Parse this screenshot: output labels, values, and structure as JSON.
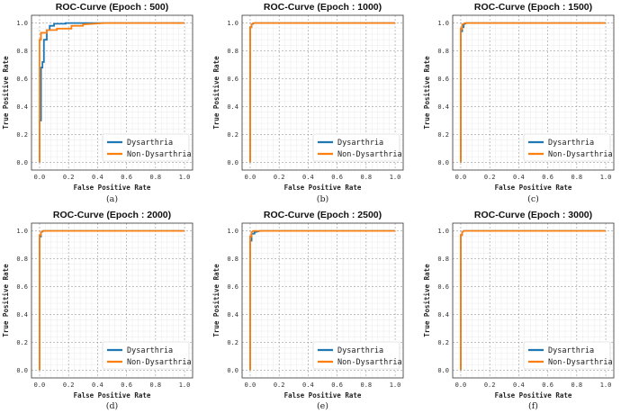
{
  "chart_data": [
    {
      "type": "line",
      "title": "ROC-Curve (Epoch : 500)",
      "caption": "(a)",
      "xlabel": "False Positive Rate",
      "ylabel": "True Positive Rate",
      "xlim": [
        0,
        1
      ],
      "ylim": [
        0,
        1
      ],
      "xticks": [
        "0.0",
        "0.2",
        "0.4",
        "0.6",
        "0.8",
        "1.0"
      ],
      "yticks": [
        "0.0",
        "0.2",
        "0.4",
        "0.6",
        "0.8",
        "1.0"
      ],
      "grid": true,
      "legend_position": "lower-right",
      "series": [
        {
          "name": "Dysarthria",
          "color": "#1f77b4",
          "x": [
            0.0,
            0.0,
            0.01,
            0.01,
            0.02,
            0.02,
            0.03,
            0.03,
            0.05,
            0.05,
            0.07,
            0.07,
            0.1,
            0.1,
            0.18,
            0.18,
            0.7,
            1.0
          ],
          "y": [
            0.0,
            0.3,
            0.3,
            0.68,
            0.68,
            0.72,
            0.72,
            0.88,
            0.88,
            0.95,
            0.95,
            0.98,
            0.98,
            0.995,
            0.995,
            1.0,
            1.0,
            1.0
          ]
        },
        {
          "name": "Non-Dysarthria",
          "color": "#ff7f0e",
          "x": [
            0.0,
            0.0,
            0.01,
            0.01,
            0.05,
            0.05,
            0.12,
            0.12,
            0.22,
            0.22,
            0.3,
            0.3,
            0.45,
            1.0
          ],
          "y": [
            0.0,
            0.88,
            0.88,
            0.93,
            0.93,
            0.95,
            0.95,
            0.96,
            0.96,
            0.98,
            0.98,
            0.99,
            1.0,
            1.0
          ]
        }
      ]
    },
    {
      "type": "line",
      "title": "ROC-Curve (Epoch : 1000)",
      "caption": "(b)",
      "xlabel": "False Positive Rate",
      "ylabel": "True Positive Rate",
      "xlim": [
        0,
        1
      ],
      "ylim": [
        0,
        1
      ],
      "xticks": [
        "0.0",
        "0.2",
        "0.4",
        "0.6",
        "0.8",
        "1.0"
      ],
      "yticks": [
        "0.0",
        "0.2",
        "0.4",
        "0.6",
        "0.8",
        "1.0"
      ],
      "grid": true,
      "legend_position": "lower-right",
      "series": [
        {
          "name": "Dysarthria",
          "color": "#1f77b4",
          "x": [
            0.0,
            0.0,
            0.01,
            0.01,
            0.03,
            1.0
          ],
          "y": [
            0.0,
            0.97,
            0.97,
            0.99,
            1.0,
            1.0
          ]
        },
        {
          "name": "Non-Dysarthria",
          "color": "#ff7f0e",
          "x": [
            0.0,
            0.0,
            0.01,
            0.01,
            0.02,
            1.0
          ],
          "y": [
            0.0,
            0.97,
            0.97,
            0.99,
            1.0,
            1.0
          ]
        }
      ]
    },
    {
      "type": "line",
      "title": "ROC-Curve (Epoch : 1500)",
      "caption": "(c)",
      "xlabel": "False Positive Rate",
      "ylabel": "True Positive Rate",
      "xlim": [
        0,
        1
      ],
      "ylim": [
        0,
        1
      ],
      "xticks": [
        "0.0",
        "0.2",
        "0.4",
        "0.6",
        "0.8",
        "1.0"
      ],
      "yticks": [
        "0.0",
        "0.2",
        "0.4",
        "0.6",
        "0.8",
        "1.0"
      ],
      "grid": true,
      "legend_position": "lower-right",
      "series": [
        {
          "name": "Dysarthria",
          "color": "#1f77b4",
          "x": [
            0.0,
            0.0,
            0.01,
            0.01,
            0.02,
            0.02,
            0.04,
            1.0
          ],
          "y": [
            0.0,
            0.94,
            0.94,
            0.97,
            0.97,
            0.99,
            1.0,
            1.0
          ]
        },
        {
          "name": "Non-Dysarthria",
          "color": "#ff7f0e",
          "x": [
            0.0,
            0.0,
            0.01,
            0.01,
            0.03,
            1.0
          ],
          "y": [
            0.0,
            0.96,
            0.96,
            0.99,
            1.0,
            1.0
          ]
        }
      ]
    },
    {
      "type": "line",
      "title": "ROC-Curve (Epoch : 2000)",
      "caption": "(d)",
      "xlabel": "False Positive Rate",
      "ylabel": "True Positive Rate",
      "xlim": [
        0,
        1
      ],
      "ylim": [
        0,
        1
      ],
      "xticks": [
        "0.0",
        "0.2",
        "0.4",
        "0.6",
        "0.8",
        "1.0"
      ],
      "yticks": [
        "0.0",
        "0.2",
        "0.4",
        "0.6",
        "0.8",
        "1.0"
      ],
      "grid": true,
      "legend_position": "lower-right",
      "series": [
        {
          "name": "Dysarthria",
          "color": "#1f77b4",
          "x": [
            0.0,
            0.0,
            0.01,
            0.01,
            0.03,
            1.0
          ],
          "y": [
            0.0,
            0.96,
            0.96,
            0.99,
            1.0,
            1.0
          ]
        },
        {
          "name": "Non-Dysarthria",
          "color": "#ff7f0e",
          "x": [
            0.0,
            0.0,
            0.01,
            0.01,
            0.02,
            1.0
          ],
          "y": [
            0.0,
            0.97,
            0.97,
            0.99,
            1.0,
            1.0
          ]
        }
      ]
    },
    {
      "type": "line",
      "title": "ROC-Curve (Epoch : 2500)",
      "caption": "(e)",
      "xlabel": "False Positive Rate",
      "ylabel": "True Positive Rate",
      "xlim": [
        0,
        1
      ],
      "ylim": [
        0,
        1
      ],
      "xticks": [
        "0.0",
        "0.2",
        "0.4",
        "0.6",
        "0.8",
        "1.0"
      ],
      "yticks": [
        "0.0",
        "0.2",
        "0.4",
        "0.6",
        "0.8",
        "1.0"
      ],
      "grid": true,
      "legend_position": "lower-right",
      "series": [
        {
          "name": "Dysarthria",
          "color": "#1f77b4",
          "x": [
            0.0,
            0.0,
            0.01,
            0.01,
            0.03,
            0.03,
            0.07,
            1.0
          ],
          "y": [
            0.0,
            0.93,
            0.93,
            0.98,
            0.98,
            0.99,
            1.0,
            1.0
          ]
        },
        {
          "name": "Non-Dysarthria",
          "color": "#ff7f0e",
          "x": [
            0.0,
            0.0,
            0.01,
            0.01,
            0.02,
            1.0
          ],
          "y": [
            0.0,
            0.96,
            0.96,
            0.99,
            1.0,
            1.0
          ]
        }
      ]
    },
    {
      "type": "line",
      "title": "ROC-Curve (Epoch : 3000)",
      "caption": "(f)",
      "xlabel": "False Positive Rate",
      "ylabel": "True Positive Rate",
      "xlim": [
        0,
        1
      ],
      "ylim": [
        0,
        1
      ],
      "xticks": [
        "0.0",
        "0.2",
        "0.4",
        "0.6",
        "0.8",
        "1.0"
      ],
      "yticks": [
        "0.0",
        "0.2",
        "0.4",
        "0.6",
        "0.8",
        "1.0"
      ],
      "grid": true,
      "legend_position": "lower-right",
      "series": [
        {
          "name": "Dysarthria",
          "color": "#1f77b4",
          "x": [
            0.0,
            0.0,
            0.01,
            0.01,
            0.02,
            1.0
          ],
          "y": [
            0.0,
            0.97,
            0.97,
            0.99,
            1.0,
            1.0
          ]
        },
        {
          "name": "Non-Dysarthria",
          "color": "#ff7f0e",
          "x": [
            0.0,
            0.0,
            0.01,
            0.01,
            0.02,
            1.0
          ],
          "y": [
            0.0,
            0.97,
            0.97,
            0.99,
            1.0,
            1.0
          ]
        }
      ]
    }
  ]
}
